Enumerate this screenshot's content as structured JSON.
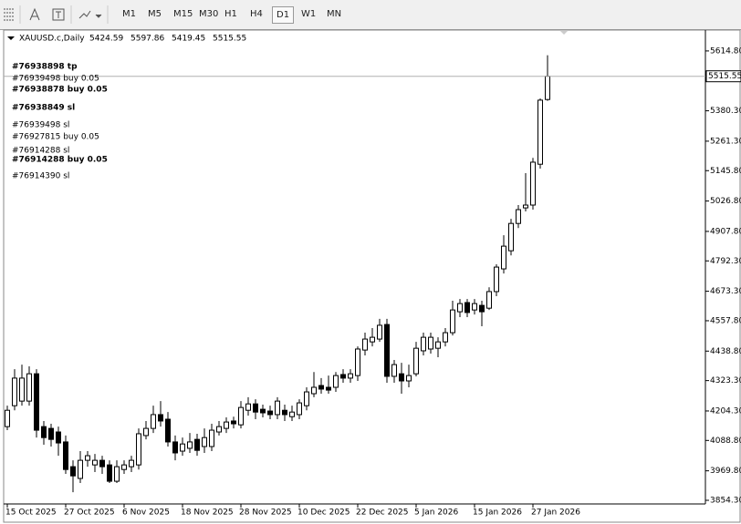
{
  "toolbar": {
    "timeframes": [
      "M1",
      "M5",
      "M15",
      "M30",
      "H1",
      "H4",
      "D1",
      "W1",
      "MN"
    ],
    "active": 6
  },
  "chart_data": {
    "type": "candlestick",
    "symbol": "XAUUSD.c,Daily",
    "categories": [
      "15 Oct 2025",
      null,
      null,
      null,
      null,
      null,
      null,
      null,
      "27 Oct 2025",
      null,
      null,
      null,
      null,
      null,
      null,
      null,
      "6 Nov 2025",
      null,
      null,
      null,
      null,
      null,
      null,
      null,
      "18 Nov 2025",
      null,
      null,
      null,
      null,
      null,
      null,
      null,
      "28 Nov 2025",
      null,
      null,
      null,
      null,
      null,
      null,
      null,
      "10 Dec 2025",
      null,
      null,
      null,
      null,
      null,
      null,
      null,
      "22 Dec 2025",
      null,
      null,
      null,
      null,
      null,
      null,
      null,
      "5 Jan 2026",
      null,
      null,
      null,
      null,
      null,
      null,
      null,
      "15 Jan 2026",
      null,
      null,
      null,
      null,
      null,
      null,
      null,
      "27 Jan 2026",
      null,
      null
    ],
    "open": [
      4143,
      4225,
      4243,
      4243,
      4350,
      4143,
      4136,
      4122,
      4083,
      3986,
      3940,
      4011,
      3993,
      4011,
      3993,
      3929,
      3975,
      3986,
      3993,
      4108,
      4136,
      4190,
      4172,
      4083,
      4047,
      4058,
      4093,
      4065,
      4065,
      4122,
      4136,
      4165,
      4150,
      4207,
      4232,
      4211,
      4204,
      4190,
      4207,
      4182,
      4190,
      4225,
      4272,
      4304,
      4297,
      4297,
      4347,
      4333,
      4343,
      4443,
      4475,
      4486,
      4543,
      4340,
      4350,
      4322,
      4350,
      4440,
      4447,
      4450,
      4475,
      4511,
      4593,
      4629,
      4600,
      4618,
      4607,
      4672,
      4761,
      4832,
      4939,
      5000,
      5011,
      5171,
      5424.59
    ],
    "high": [
      4225,
      4368,
      4386,
      4379,
      4368,
      4165,
      4154,
      4143,
      4108,
      4011,
      4047,
      4047,
      4036,
      4029,
      4011,
      4011,
      4011,
      4029,
      4136,
      4165,
      4225,
      4243,
      4200,
      4108,
      4100,
      4118,
      4115,
      4136,
      4154,
      4165,
      4179,
      4182,
      4243,
      4258,
      4250,
      4229,
      4225,
      4258,
      4229,
      4225,
      4250,
      4297,
      4357,
      4333,
      4343,
      4357,
      4368,
      4368,
      4457,
      4511,
      4529,
      4565,
      4565,
      4404,
      4393,
      4386,
      4475,
      4511,
      4511,
      4493,
      4529,
      4636,
      4643,
      4643,
      4643,
      4636,
      4689,
      4779,
      4893,
      4957,
      5011,
      5136,
      5196,
      5429,
      5597.86
    ],
    "low": [
      4129,
      4207,
      4225,
      4225,
      4100,
      4072,
      4065,
      4029,
      3958,
      3886,
      3922,
      3986,
      3965,
      3958,
      3922,
      3922,
      3958,
      3965,
      3975,
      4093,
      4118,
      4143,
      4065,
      4011,
      4029,
      4040,
      4029,
      4040,
      4047,
      4108,
      4118,
      4136,
      4136,
      4186,
      4172,
      4179,
      4172,
      4172,
      4165,
      4165,
      4172,
      4207,
      4258,
      4272,
      4272,
      4279,
      4315,
      4315,
      4322,
      4422,
      4457,
      4475,
      4315,
      4315,
      4272,
      4297,
      4340,
      4422,
      4429,
      4415,
      4457,
      4500,
      4572,
      4572,
      4582,
      4536,
      4600,
      4654,
      4743,
      4814,
      4921,
      4986,
      4993,
      5154,
      5419.45
    ],
    "close": [
      4207,
      4333,
      4333,
      4350,
      4129,
      4100,
      4093,
      4079,
      3975,
      3950,
      4011,
      4029,
      4011,
      3986,
      3929,
      3986,
      3993,
      4011,
      4115,
      4136,
      4190,
      4165,
      4083,
      4040,
      4075,
      4083,
      4050,
      4100,
      4129,
      4143,
      4161,
      4154,
      4218,
      4232,
      4200,
      4197,
      4190,
      4243,
      4190,
      4200,
      4236,
      4279,
      4297,
      4290,
      4286,
      4343,
      4333,
      4350,
      4447,
      4486,
      4493,
      4540,
      4340,
      4386,
      4322,
      4343,
      4450,
      4493,
      4493,
      4475,
      4511,
      4600,
      4625,
      4590,
      4625,
      4593,
      4672,
      4768,
      4850,
      4939,
      4993,
      5011,
      5179,
      5422,
      5515.55
    ],
    "up_color": "#ffffff",
    "down_color": "#000000",
    "ylim": [
      3840,
      5693
    ],
    "yticks": [
      {
        "value": 5614.8,
        "label": "5614.80"
      },
      {
        "value": 5380.3,
        "label": "5380.30"
      },
      {
        "value": 5261.3,
        "label": "5261.30"
      },
      {
        "value": 5145.8,
        "label": "5145.80"
      },
      {
        "value": 5026.8,
        "label": "5026.80"
      },
      {
        "value": 4907.8,
        "label": "4907.80"
      },
      {
        "value": 4792.3,
        "label": "4792.30"
      },
      {
        "value": 4673.3,
        "label": "4673.30"
      },
      {
        "value": 4557.8,
        "label": "4557.80"
      },
      {
        "value": 4438.8,
        "label": "4438.80"
      },
      {
        "value": 4323.3,
        "label": "4323.30"
      },
      {
        "value": 4204.3,
        "label": "4204.30"
      },
      {
        "value": 4088.8,
        "label": "4088.80"
      },
      {
        "value": 3969.8,
        "label": "3969.80"
      },
      {
        "value": 3854.3,
        "label": "3854.30"
      }
    ],
    "annotations": [
      "#76938898 tp",
      "#76939498 buy 0.05",
      "#76938878 buy 0.05",
      "#76938849 sl",
      "#76939498 sl",
      "#76927815 buy 0.05",
      "#76914288 sl",
      "#76914288 buy 0.05",
      "#76914390 sl"
    ]
  }
}
